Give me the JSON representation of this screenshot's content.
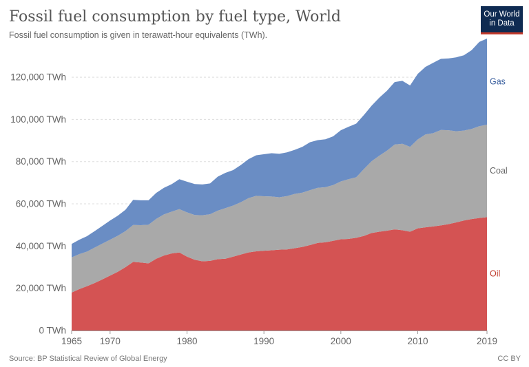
{
  "header": {
    "title": "Fossil fuel consumption by fuel type, World",
    "subtitle": "Fossil fuel consumption is given in terawatt-hour equivalents (TWh)."
  },
  "logo": {
    "text": "Our World\nin Data"
  },
  "footer": {
    "source": "Source: BP Statistical Review of Global Energy",
    "license": "CC BY"
  },
  "chart_data": {
    "type": "area",
    "stacked": true,
    "x": [
      1965,
      1966,
      1967,
      1968,
      1969,
      1970,
      1971,
      1972,
      1973,
      1974,
      1975,
      1976,
      1977,
      1978,
      1979,
      1980,
      1981,
      1982,
      1983,
      1984,
      1985,
      1986,
      1987,
      1988,
      1989,
      1990,
      1991,
      1992,
      1993,
      1994,
      1995,
      1996,
      1997,
      1998,
      1999,
      2000,
      2001,
      2002,
      2003,
      2004,
      2005,
      2006,
      2007,
      2008,
      2009,
      2010,
      2011,
      2012,
      2013,
      2014,
      2015,
      2016,
      2017,
      2018,
      2019
    ],
    "series": [
      {
        "name": "Oil",
        "color": "#d45353",
        "values": [
          18000,
          19600,
          21000,
          22500,
          24200,
          26000,
          27800,
          30000,
          32500,
          32200,
          31800,
          34000,
          35500,
          36500,
          37000,
          35000,
          33500,
          32800,
          33000,
          33800,
          34000,
          35000,
          36000,
          37000,
          37500,
          37800,
          38000,
          38300,
          38400,
          39000,
          39600,
          40500,
          41500,
          41800,
          42500,
          43200,
          43400,
          43900,
          44800,
          46200,
          46800,
          47300,
          47900,
          47500,
          46800,
          48400,
          48900,
          49300,
          49800,
          50400,
          51200,
          52100,
          52800,
          53300,
          53700
        ]
      },
      {
        "name": "Coal",
        "color": "#a9a9a9",
        "values": [
          16600,
          16600,
          16400,
          16800,
          17000,
          17000,
          17100,
          17100,
          17500,
          17700,
          18300,
          18900,
          19500,
          19800,
          20500,
          21000,
          21200,
          21800,
          22100,
          23000,
          24000,
          24200,
          24800,
          25700,
          26300,
          25800,
          25500,
          24800,
          25300,
          25700,
          25700,
          26000,
          26100,
          26100,
          26400,
          27400,
          28300,
          28700,
          31700,
          34000,
          36000,
          37900,
          40200,
          41000,
          40200,
          42100,
          44000,
          44200,
          45200,
          44500,
          43200,
          42600,
          42700,
          43500,
          43800
        ]
      },
      {
        "name": "Gas",
        "color": "#6a8dc4",
        "values": [
          6400,
          6800,
          7300,
          7800,
          8400,
          9100,
          9500,
          10100,
          11900,
          11800,
          11600,
          12300,
          12600,
          13000,
          14200,
          14500,
          14700,
          14600,
          14600,
          16100,
          16700,
          16800,
          17600,
          18500,
          19200,
          19900,
          20500,
          20600,
          20700,
          20900,
          21700,
          22700,
          22600,
          22700,
          23100,
          24300,
          24800,
          25400,
          25600,
          26300,
          27500,
          28400,
          29600,
          29800,
          29100,
          31100,
          32000,
          33300,
          33700,
          34000,
          35000,
          35700,
          37300,
          39900,
          40800
        ]
      }
    ],
    "ylim": [
      0,
      137000
    ],
    "y_ticks": [
      0,
      20000,
      40000,
      60000,
      80000,
      100000,
      120000
    ],
    "y_tick_labels": [
      "0 TWh",
      "20,000 TWh",
      "40,000 TWh",
      "60,000 TWh",
      "80,000 TWh",
      "100,000 TWh",
      "120,000 TWh"
    ],
    "x_ticks": [
      1965,
      1970,
      1980,
      1990,
      2000,
      2010,
      2019
    ],
    "x_tick_labels": [
      "1965",
      "1970",
      "1980",
      "1990",
      "2000",
      "2010",
      "2019"
    ],
    "grid": true,
    "legend": "inline-right"
  }
}
